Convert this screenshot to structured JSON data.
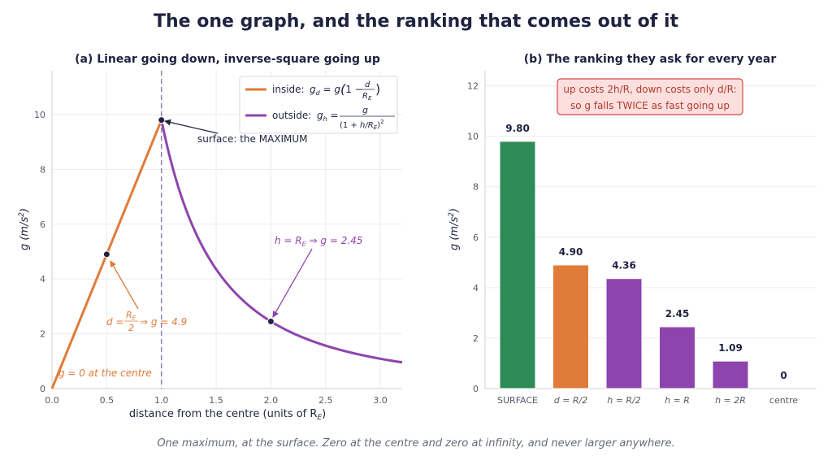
{
  "title": "The one graph, and the ranking that comes out of it",
  "caption": "One maximum, at the surface. Zero at the centre and zero at infinity, and never larger anywhere.",
  "colors": {
    "inside": "#e07b39",
    "outside": "#8e44ad",
    "surface": "#2e8b57",
    "dark": "#1f2340",
    "dash": "#8c82b8",
    "note_bg": "#fde0de",
    "note_edge": "#d64545",
    "note_text": "#b03a2e"
  },
  "chart_data": [
    {
      "type": "line",
      "title": "(a) Linear going down, inverse-square going up",
      "xlabel": "distance from the centre   (units of R",
      "xlabel_sub": "E",
      "xlabel_end": ")",
      "ylabel": "g   (m/s",
      "ylabel_sup": "2",
      "ylabel_end": ")",
      "xlim": [
        0,
        3.2
      ],
      "ylim": [
        0,
        11.6
      ],
      "xticks": [
        "0.0",
        "0.5",
        "1.0",
        "1.5",
        "2.0",
        "2.5",
        "3.0"
      ],
      "yticks": [
        "0",
        "2",
        "4",
        "6",
        "8",
        "10"
      ],
      "grid": true,
      "legend_position": "top-right",
      "series": [
        {
          "name": "inside:",
          "formula": "g_d = g(1 − d/R_E)",
          "x": [
            0,
            1
          ],
          "y": [
            0,
            9.8
          ]
        },
        {
          "name": "outside:",
          "formula": "g_h = g / (1 + h/R_E)^2",
          "x_range": [
            1,
            3.2
          ],
          "y_at_x1": 9.8
        }
      ],
      "points": [
        {
          "x": 0.5,
          "y": 4.9
        },
        {
          "x": 1.0,
          "y": 9.8
        },
        {
          "x": 2.0,
          "y": 2.45
        }
      ],
      "surface_line_x": 1.0,
      "annotations": [
        {
          "text": "surface: the MAXIMUM"
        },
        {
          "text": "h = R",
          "sub": "E",
          "rest": " ⇒ g = 2.45"
        },
        {
          "text": "d = ",
          "frac_num": "R",
          "frac_num_sub": "E",
          "frac_den": "2",
          "rest": " ⇒ g = 4.9"
        },
        {
          "text": "g = 0 at the centre"
        }
      ]
    },
    {
      "type": "bar",
      "title": "(b) The ranking they ask for every year",
      "ylabel": "g   (m/s",
      "ylabel_sup": "2",
      "ylabel_end": ")",
      "ylim": [
        0,
        12.6
      ],
      "yticks": [
        "0",
        "2",
        "4",
        "6",
        "8",
        "10",
        "12"
      ],
      "grid": true,
      "categories": [
        "SURFACE",
        "d = R/2",
        "h = R/2",
        "h = R",
        "h = 2R",
        "centre"
      ],
      "values": [
        9.8,
        4.9,
        4.36,
        2.45,
        1.09,
        0
      ],
      "value_labels": [
        "9.80",
        "4.90",
        "4.36",
        "2.45",
        "1.09",
        "0"
      ],
      "bar_colors": [
        "#2e8b57",
        "#e07b39",
        "#8e44ad",
        "#8e44ad",
        "#8e44ad",
        "#8e44ad"
      ],
      "note_lines": [
        "up costs 2h/R, down costs only d/R:",
        "so g falls TWICE as fast going up"
      ]
    }
  ]
}
